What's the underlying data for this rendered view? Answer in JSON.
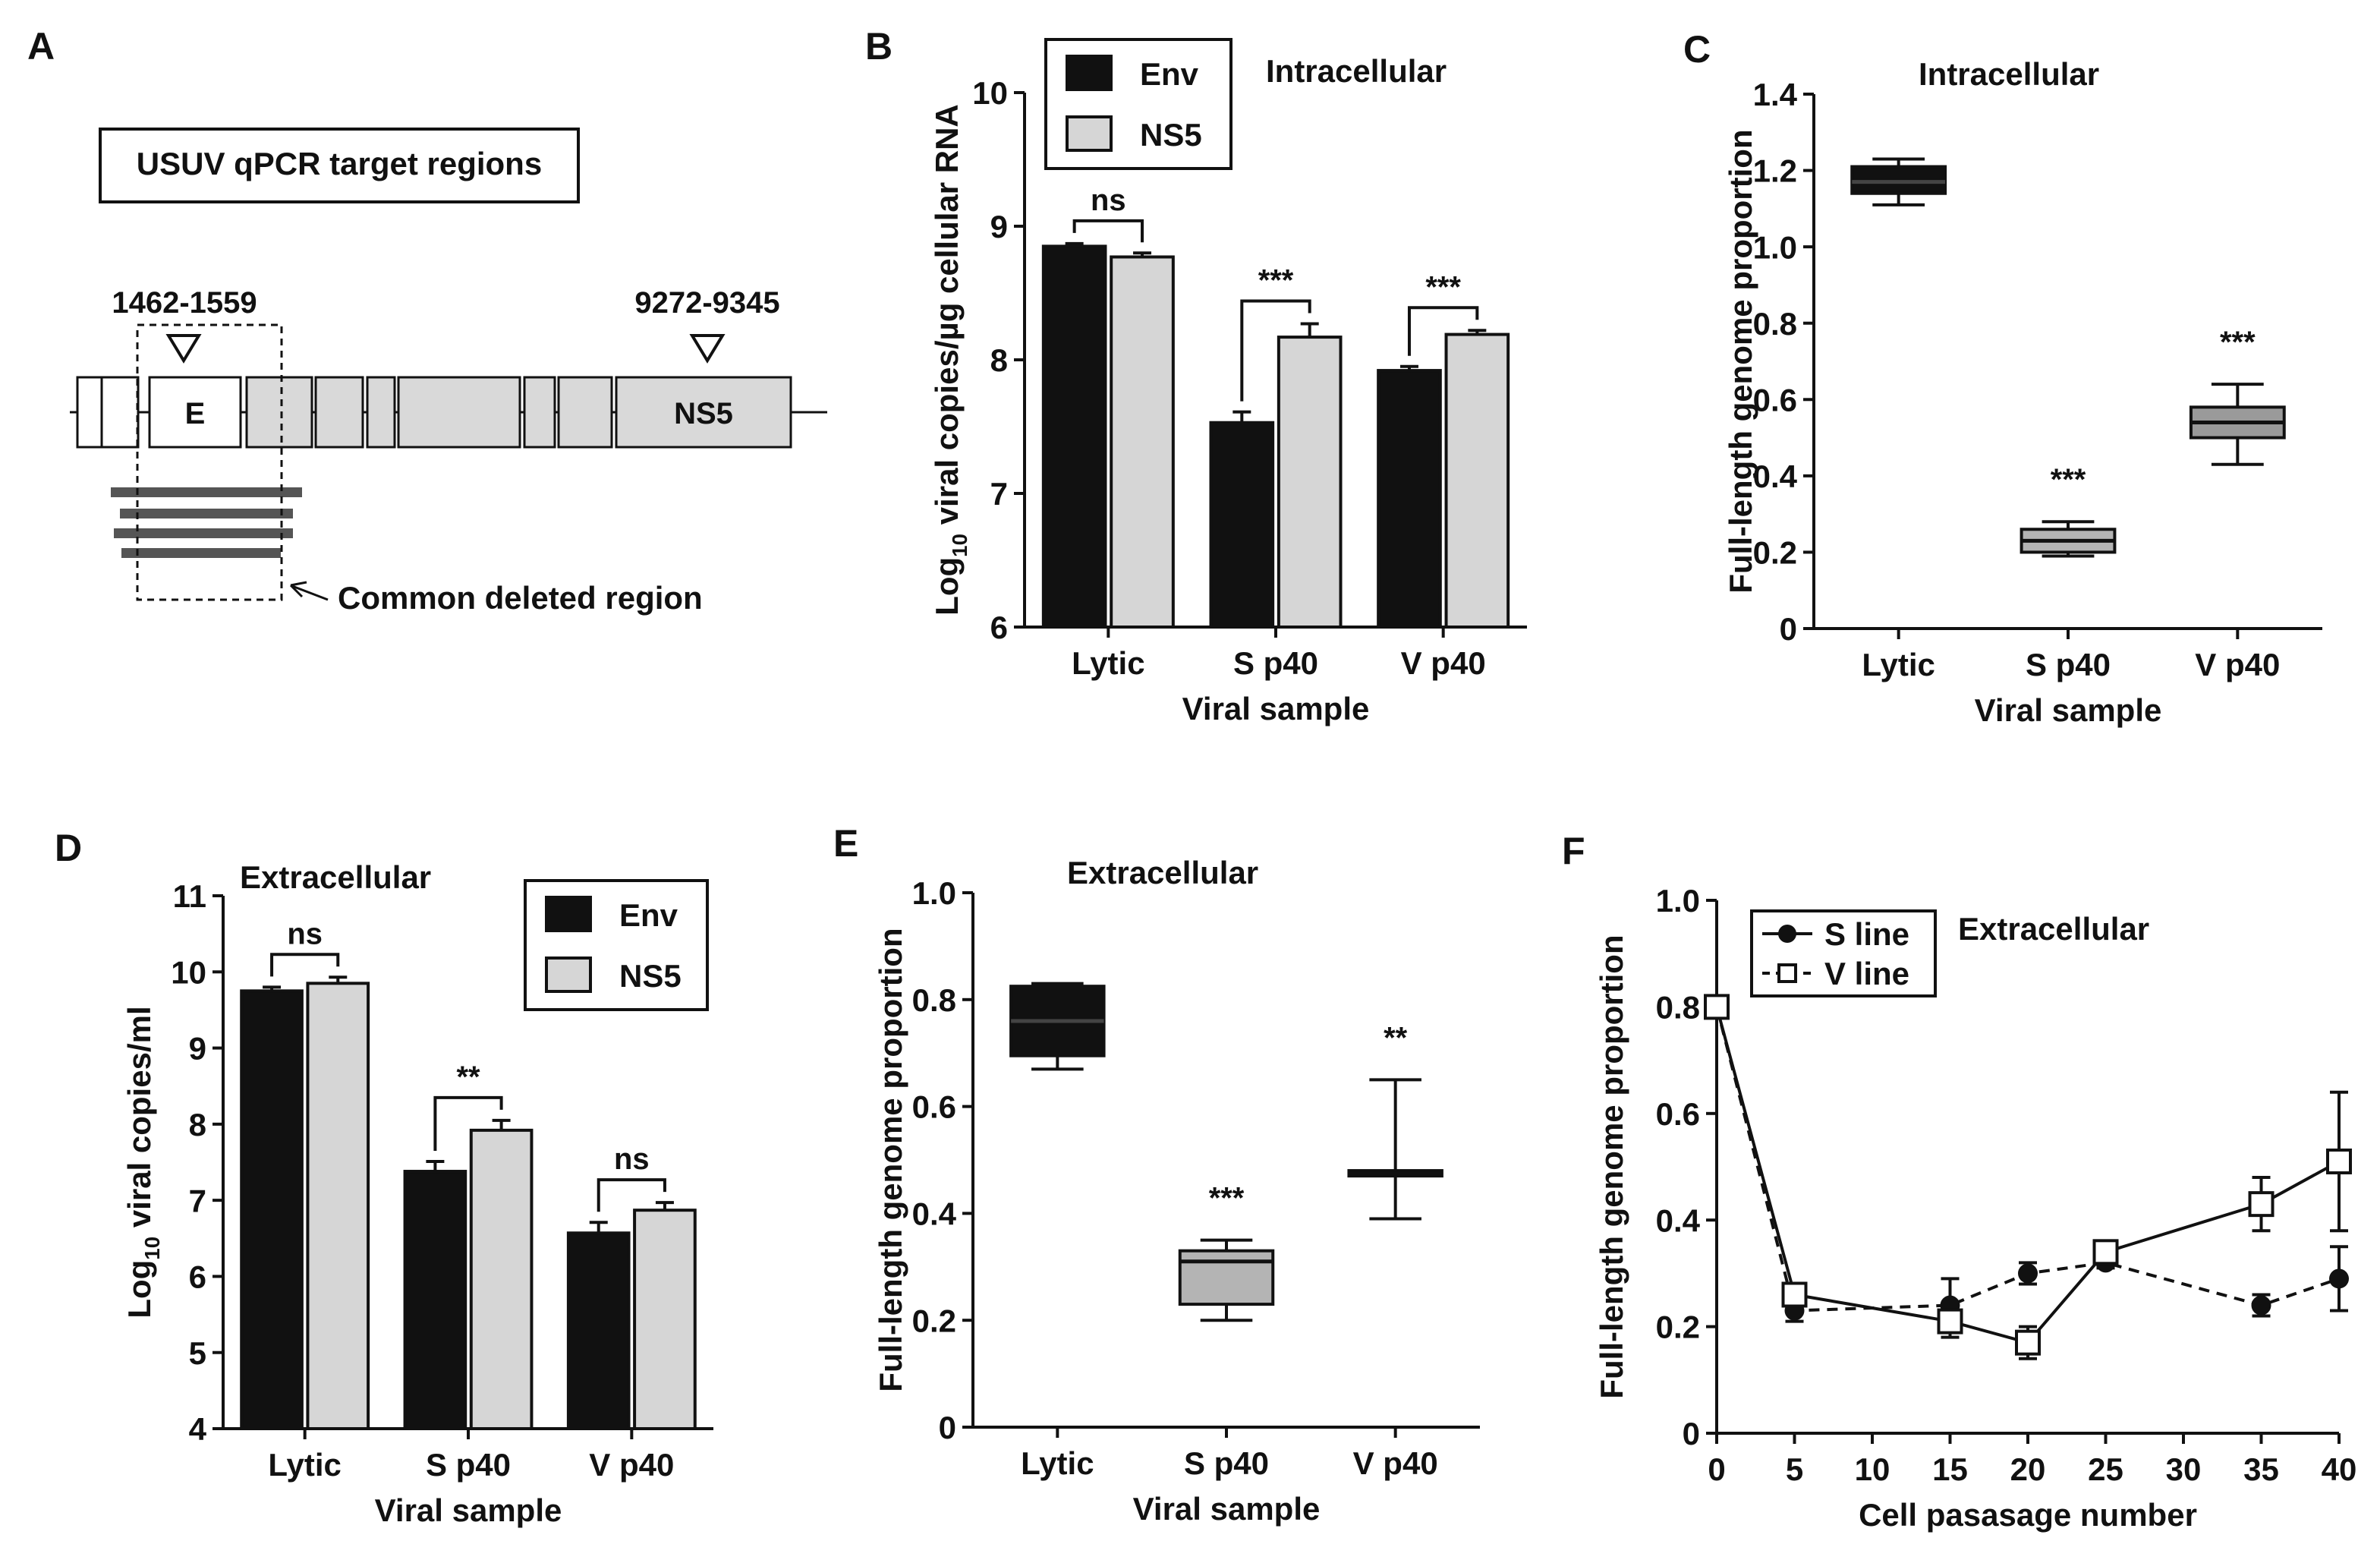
{
  "colors": {
    "env": "#111111",
    "ns5": "#d6d6d6",
    "box_lytic": "#111111",
    "box_s": "#b4b4b4",
    "box_v": "#9a9a9a",
    "diagram_fill": "#d9d9d9",
    "deletion_bar": "#555555"
  },
  "panelA": {
    "letter": "A",
    "box_title": "USUV qPCR target regions",
    "site1": "1462-1559",
    "site2": "9272-9345",
    "seg_E": "E",
    "seg_NS5": "NS5",
    "deletion_label": "Common deleted region"
  },
  "chart_data": [
    {
      "panel": "B",
      "type": "bar",
      "title": "Intracellular",
      "ylabel_prefix": "Log",
      "ylabel_sub": "10",
      "ylabel_rest": " viral copies/µg cellular RNA",
      "xlabel": "Viral sample",
      "categories": [
        "Lytic",
        "S p40",
        "V p40"
      ],
      "ylim": [
        6,
        10
      ],
      "yticks": [
        "6",
        "7",
        "8",
        "9",
        "10"
      ],
      "series": [
        {
          "name": "Env",
          "values": [
            8.85,
            7.53,
            7.92
          ],
          "errors": [
            0.02,
            0.08,
            0.03
          ]
        },
        {
          "name": "NS5",
          "values": [
            8.77,
            8.17,
            8.19
          ],
          "errors": [
            0.03,
            0.1,
            0.03
          ]
        }
      ],
      "significance": [
        "ns",
        "***",
        "***"
      ]
    },
    {
      "panel": "C",
      "type": "box",
      "title": "Intracellular",
      "ylabel": "Full-length genome proportion",
      "xlabel": "Viral sample",
      "categories": [
        "Lytic",
        "S p40",
        "V p40"
      ],
      "ylim": [
        0,
        1.4
      ],
      "yticks": [
        "0",
        "0.2",
        "0.4",
        "0.6",
        "0.8",
        "1.0",
        "1.2",
        "1.4"
      ],
      "boxes": [
        {
          "min": 1.11,
          "q1": 1.14,
          "median": 1.17,
          "q3": 1.21,
          "max": 1.23
        },
        {
          "min": 0.19,
          "q1": 0.2,
          "median": 0.23,
          "q3": 0.26,
          "max": 0.28
        },
        {
          "min": 0.43,
          "q1": 0.5,
          "median": 0.54,
          "q3": 0.58,
          "max": 0.64
        }
      ],
      "significance": [
        "",
        "***",
        "***"
      ]
    },
    {
      "panel": "D",
      "type": "bar",
      "title": "Extracellular",
      "ylabel_prefix": "Log",
      "ylabel_sub": "10",
      "ylabel_rest": " viral copies/ml",
      "xlabel": "Viral sample",
      "categories": [
        "Lytic",
        "S p40",
        "V p40"
      ],
      "ylim": [
        4,
        11
      ],
      "yticks": [
        "4",
        "5",
        "6",
        "7",
        "8",
        "9",
        "10",
        "11"
      ],
      "series": [
        {
          "name": "Env",
          "values": [
            9.75,
            7.38,
            6.57
          ],
          "errors": [
            0.05,
            0.13,
            0.14
          ]
        },
        {
          "name": "NS5",
          "values": [
            9.85,
            7.92,
            6.87
          ],
          "errors": [
            0.08,
            0.13,
            0.1
          ]
        }
      ],
      "significance": [
        "ns",
        "**",
        "ns"
      ]
    },
    {
      "panel": "E",
      "type": "box",
      "title": "Extracellular",
      "ylabel": "Full-length genome proportion",
      "xlabel": "Viral sample",
      "categories": [
        "Lytic",
        "S p40",
        "V p40"
      ],
      "ylim": [
        0,
        1.0
      ],
      "yticks": [
        "0",
        "0.2",
        "0.4",
        "0.6",
        "0.8",
        "1.0"
      ],
      "boxes": [
        {
          "min": 0.67,
          "q1": 0.695,
          "median": 0.76,
          "q3": 0.825,
          "max": 0.83
        },
        {
          "min": 0.2,
          "q1": 0.23,
          "median": 0.31,
          "q3": 0.33,
          "max": 0.35
        },
        {
          "min": 0.39,
          "q1": 0.47,
          "median": 0.475,
          "q3": 0.48,
          "max": 0.65
        }
      ],
      "significance": [
        "",
        "***",
        "**"
      ]
    },
    {
      "panel": "F",
      "type": "line",
      "title": "Extracellular",
      "ylabel": "Full-length genome proportion",
      "xlabel": "Cell pasasage number",
      "x": [
        0,
        5,
        15,
        20,
        25,
        35,
        40
      ],
      "xlim": [
        0,
        40
      ],
      "xticks": [
        "0",
        "5",
        "10",
        "15",
        "20",
        "25",
        "30",
        "35",
        "40"
      ],
      "ylim": [
        0,
        1.0
      ],
      "yticks": [
        "0",
        "0.2",
        "0.4",
        "0.6",
        "0.8",
        "1.0"
      ],
      "series": [
        {
          "name": "S line",
          "marker": "filled-circle",
          "style": "solid-legend",
          "values": [
            0.8,
            0.23,
            0.24,
            0.3,
            0.32,
            0.24,
            0.29
          ],
          "errors": [
            0.02,
            0.02,
            0.05,
            0.02,
            0.01,
            0.02,
            0.06
          ]
        },
        {
          "name": "V line",
          "marker": "open-square",
          "style": "dashed-legend",
          "values": [
            0.8,
            0.26,
            0.21,
            0.17,
            0.34,
            0.43,
            0.51
          ],
          "errors": [
            0.02,
            0.02,
            0.03,
            0.03,
            0.01,
            0.05,
            0.13
          ]
        }
      ]
    }
  ]
}
